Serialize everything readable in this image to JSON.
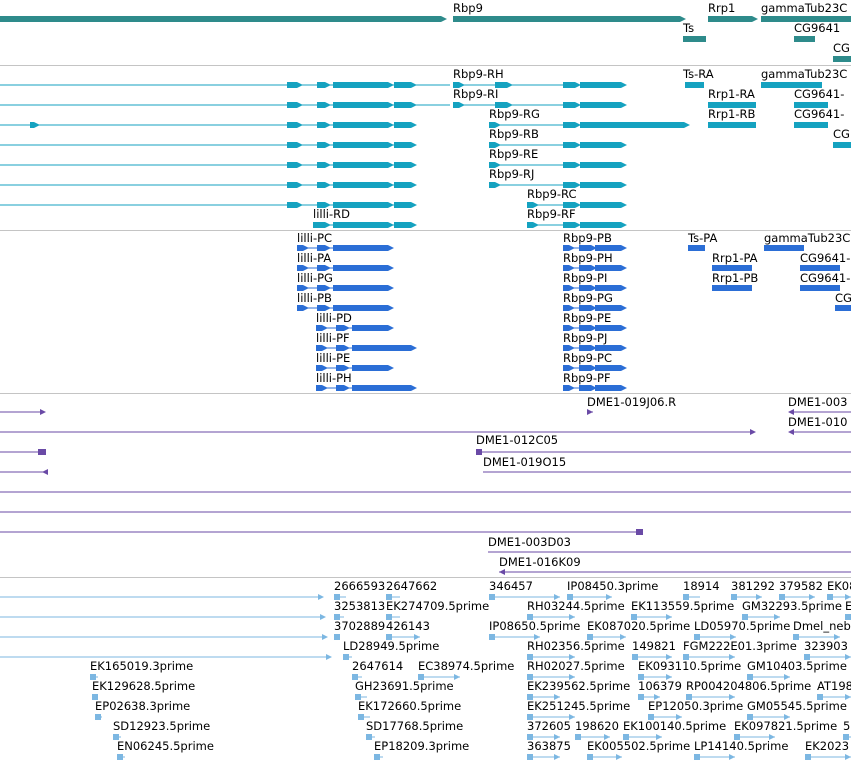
{
  "colors": {
    "gene": "#2e8b8b",
    "transcript": "#15a2c0",
    "transcript_alt": "#2b6ed6",
    "clone": "#6a4aa6",
    "est": "#7cb7e2",
    "divider": "#c4c4c4"
  },
  "tracks": [
    {
      "id": "genes",
      "color": "#2e8b8b",
      "labels": [
        "Rbp9",
        "Rrp1",
        "gammaTub23C",
        "Ts",
        "CG9641",
        "CG"
      ]
    },
    {
      "id": "transcripts-a",
      "color": "#15a2c0",
      "labels": [
        "Rbp9-RH",
        "Ts-RA",
        "gammaTub23C",
        "Rbp9-RI",
        "Rrp1-RA",
        "CG9641-",
        "Rbp9-RG",
        "Rrp1-RB",
        "CG9641-",
        "Rbp9-RB",
        "CG",
        "Rbp9-RE",
        "Rbp9-RJ",
        "Rbp9-RC",
        "lilli-RD",
        "Rbp9-RF"
      ]
    },
    {
      "id": "transcripts-b",
      "color": "#2b6ed6",
      "labels": [
        "lilli-PC",
        "Rbp9-PB",
        "Ts-PA",
        "gammaTub23C",
        "lilli-PA",
        "Rbp9-PH",
        "Rrp1-PA",
        "CG9641-",
        "lilli-PG",
        "Rbp9-PI",
        "Rrp1-PB",
        "CG9641-",
        "lilli-PB",
        "Rbp9-PG",
        "CG",
        "lilli-PD",
        "Rbp9-PE",
        "lilli-PF",
        "Rbp9-PJ",
        "lilli-PE",
        "Rbp9-PC",
        "lilli-PH",
        "Rbp9-PF"
      ]
    },
    {
      "id": "clones",
      "color": "#6a4aa6",
      "labels": [
        "DME1-019J06.R",
        "DME1-003",
        "DME1-010",
        "DME1-012C05",
        "DME1-019O15",
        "DME1-003D03",
        "DME1-016K09"
      ]
    },
    {
      "id": "ests",
      "color": "#7cb7e2",
      "labels": [
        "2666593",
        "2647662",
        "346457",
        "IP08450.3prime",
        "18914",
        "381292",
        "379582",
        "EK08",
        "3253813",
        "EK274709.5prime",
        "RH03244.5prime",
        "EK113559.5prime",
        "GM32293.5prime",
        "E",
        "3702889",
        "426143",
        "IP08650.5prime",
        "EK087020.5prime",
        "LD05970.5prime",
        "Dmel_neb",
        "LD28949.5prime",
        "RH02356.5prime",
        "149821",
        "FGM222E01.3prime",
        "323903",
        "EK165019.3prime",
        "2647614",
        "EC38974.5prime",
        "RH02027.5prime",
        "EK093110.5prime",
        "GM10403.5prime",
        "EK129628.5prime",
        "GH23691.5prime",
        "EK239562.5prime",
        "106379",
        "RP004204806.5prime",
        "AT198",
        "EP02638.3prime",
        "EK172660.5prime",
        "EK251245.5prime",
        "EP12050.3prime",
        "GM05545.5prime",
        "SD12923.5prime",
        "SD17768.5prime",
        "372605",
        "198620",
        "EK100140.5prime",
        "EK097821.5prime",
        "5",
        "EN06245.5prime",
        "EP18209.3prime",
        "363875",
        "EK005502.5prime",
        "LP14140.5prime",
        "EK2023"
      ]
    }
  ]
}
